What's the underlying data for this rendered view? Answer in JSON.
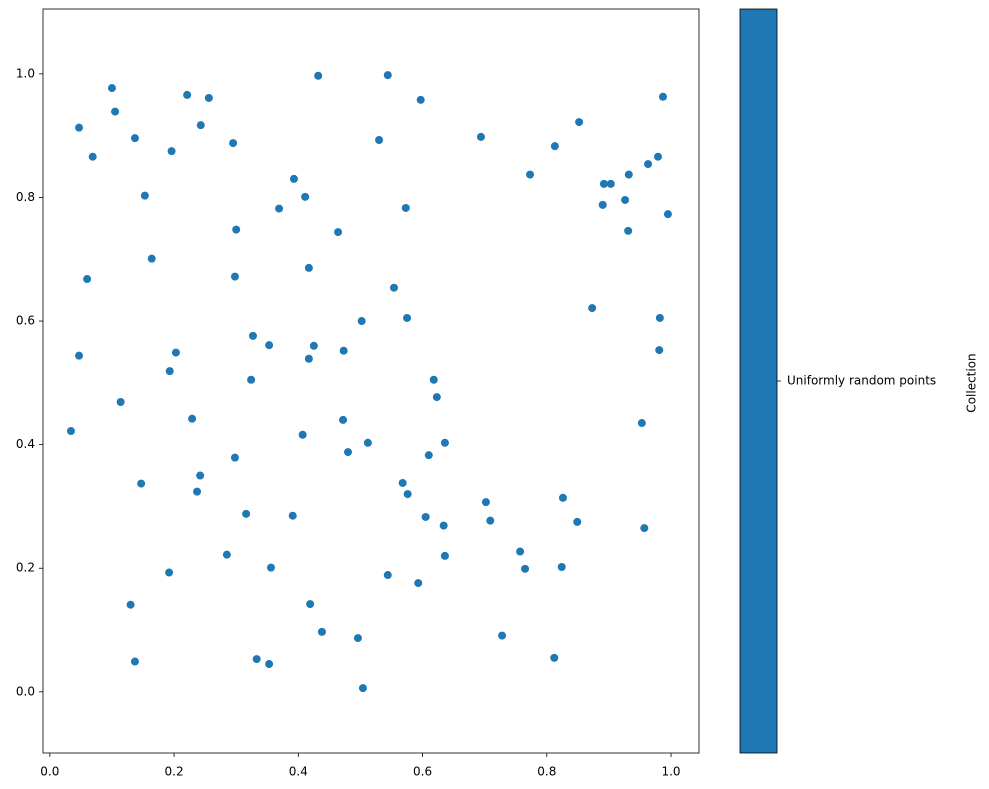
{
  "chart_data": {
    "type": "scatter",
    "colorbar_label": "Collection",
    "xlim": [
      -0.011,
      1.045
    ],
    "ylim": [
      -0.099,
      1.105
    ],
    "xticks": [
      {
        "value": 0,
        "label": "0.0"
      },
      0.2,
      0.4,
      0.6,
      0.8,
      {
        "value": 1,
        "label": "1.0"
      }
    ],
    "yticks": [
      {
        "value": 0,
        "label": "0.0"
      },
      0.2,
      0.4,
      0.6,
      0.8,
      {
        "value": 1,
        "label": "1.0"
      }
    ],
    "series": [
      {
        "name": "Uniformly random points",
        "color": "#1f77b4",
        "x": [
          0.047,
          0.1,
          0.069,
          0.105,
          0.137,
          0.221,
          0.256,
          0.243,
          0.196,
          0.295,
          0.432,
          0.544,
          0.597,
          0.694,
          0.53,
          0.852,
          0.813,
          0.987,
          0.153,
          0.393,
          0.411,
          0.369,
          0.573,
          0.3,
          0.464,
          0.773,
          0.892,
          0.903,
          0.932,
          0.963,
          0.979,
          0.89,
          0.926,
          0.931,
          0.995,
          0.06,
          0.164,
          0.298,
          0.417,
          0.554,
          0.873,
          0.047,
          0.203,
          0.327,
          0.353,
          0.425,
          0.417,
          0.473,
          0.502,
          0.575,
          0.982,
          0.981,
          0.193,
          0.324,
          0.618,
          0.623,
          0.114,
          0.034,
          0.229,
          0.407,
          0.472,
          0.48,
          0.512,
          0.636,
          0.61,
          0.953,
          0.298,
          0.147,
          0.242,
          0.237,
          0.316,
          0.391,
          0.568,
          0.576,
          0.605,
          0.634,
          0.702,
          0.709,
          0.826,
          0.849,
          0.957,
          0.285,
          0.192,
          0.356,
          0.544,
          0.593,
          0.636,
          0.757,
          0.765,
          0.824,
          0.13,
          0.419,
          0.438,
          0.496,
          0.728,
          0.137,
          0.333,
          0.353,
          0.504,
          0.812
        ],
        "y": [
          0.913,
          0.977,
          0.866,
          0.939,
          0.896,
          0.966,
          0.961,
          0.917,
          0.875,
          0.888,
          0.997,
          0.998,
          0.958,
          0.898,
          0.893,
          0.922,
          0.883,
          0.963,
          0.803,
          0.83,
          0.801,
          0.782,
          0.783,
          0.748,
          0.744,
          0.837,
          0.822,
          0.822,
          0.837,
          0.854,
          0.866,
          0.788,
          0.796,
          0.746,
          0.773,
          0.668,
          0.701,
          0.672,
          0.686,
          0.654,
          0.621,
          0.544,
          0.549,
          0.576,
          0.561,
          0.56,
          0.539,
          0.552,
          0.6,
          0.605,
          0.605,
          0.553,
          0.519,
          0.505,
          0.505,
          0.477,
          0.469,
          0.422,
          0.442,
          0.416,
          0.44,
          0.388,
          0.403,
          0.403,
          0.383,
          0.435,
          0.379,
          0.337,
          0.35,
          0.324,
          0.288,
          0.285,
          0.338,
          0.32,
          0.283,
          0.269,
          0.307,
          0.277,
          0.314,
          0.275,
          0.265,
          0.222,
          0.193,
          0.201,
          0.189,
          0.176,
          0.22,
          0.227,
          0.199,
          0.202,
          0.141,
          0.142,
          0.097,
          0.087,
          0.091,
          0.049,
          0.053,
          0.045,
          0.006,
          0.055
        ]
      }
    ]
  }
}
